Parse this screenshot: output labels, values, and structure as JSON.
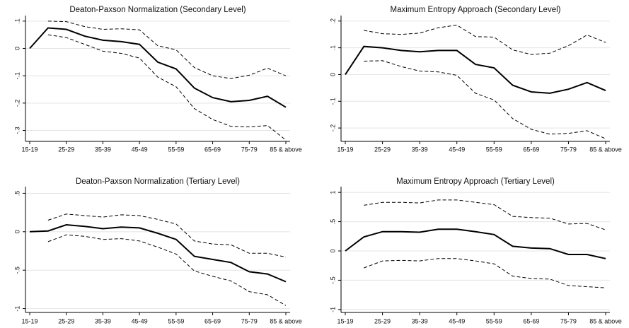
{
  "chart_data": [
    {
      "type": "line",
      "title": "Deaton-Paxson Normalization (Secondary Level)",
      "categories": [
        "15-19",
        null,
        "25-29",
        null,
        "35-39",
        null,
        "45-49",
        null,
        "55-59",
        null,
        "65-69",
        null,
        "75-79",
        null,
        "85 & above"
      ],
      "series": [
        {
          "color": "#000000",
          "style": "solid",
          "values": [
            0,
            0.075,
            0.07,
            0.045,
            0.03,
            0.025,
            0.015,
            -0.05,
            -0.075,
            -0.145,
            -0.18,
            -0.195,
            -0.19,
            -0.175,
            -0.215
          ]
        },
        {
          "color": "#000000",
          "style": "dashed",
          "values": [
            null,
            0.1,
            0.098,
            0.08,
            0.07,
            0.072,
            0.068,
            0.01,
            -0.005,
            -0.07,
            -0.1,
            -0.11,
            -0.098,
            -0.072,
            -0.1
          ]
        },
        {
          "color": "#000000",
          "style": "dashed",
          "values": [
            null,
            0.05,
            0.04,
            0.015,
            -0.01,
            -0.018,
            -0.035,
            -0.105,
            -0.14,
            -0.22,
            -0.26,
            -0.285,
            -0.287,
            -0.282,
            -0.335
          ]
        }
      ],
      "ylim": [
        -0.34,
        0.11
      ],
      "yticks": [
        {
          "value": 0.1,
          "label": ".1"
        },
        0,
        {
          "value": -0.1,
          "label": "-.1"
        },
        {
          "value": -0.2,
          "label": "-.2"
        },
        {
          "value": -0.3,
          "label": "-.3"
        }
      ],
      "grid": true
    },
    {
      "type": "line",
      "title": "Maximum Entropy Approach (Secondary Level)",
      "categories": [
        "15-19",
        null,
        "25-29",
        null,
        "35-39",
        null,
        "45-49",
        null,
        "55-59",
        null,
        "65-69",
        null,
        "75-79",
        null,
        "85 & above"
      ],
      "series": [
        {
          "color": "#000000",
          "style": "solid",
          "values": [
            0,
            0.105,
            0.1,
            0.09,
            0.085,
            0.09,
            0.09,
            0.038,
            0.025,
            -0.04,
            -0.065,
            -0.07,
            -0.055,
            -0.03,
            -0.06
          ]
        },
        {
          "color": "#000000",
          "style": "dashed",
          "values": [
            null,
            0.165,
            0.153,
            0.15,
            0.155,
            0.175,
            0.185,
            0.142,
            0.14,
            0.092,
            0.075,
            0.08,
            0.108,
            0.148,
            0.12
          ]
        },
        {
          "color": "#000000",
          "style": "dashed",
          "values": [
            null,
            0.05,
            0.052,
            0.03,
            0.013,
            0.01,
            -0.003,
            -0.07,
            -0.095,
            -0.165,
            -0.205,
            -0.223,
            -0.22,
            -0.21,
            -0.24
          ]
        }
      ],
      "ylim": [
        -0.25,
        0.21
      ],
      "yticks": [
        {
          "value": 0.2,
          "label": ".2"
        },
        {
          "value": 0.1,
          "label": ".1"
        },
        0,
        {
          "value": -0.1,
          "label": "-.1"
        },
        {
          "value": -0.2,
          "label": "-.2"
        }
      ],
      "grid": true
    },
    {
      "type": "line",
      "title": "Deaton-Paxson Normalization (Tertiary Level)",
      "categories": [
        "15-19",
        null,
        "25-29",
        null,
        "35-39",
        null,
        "45-49",
        null,
        "55-59",
        null,
        "65-69",
        null,
        "75-79",
        null,
        "85 & above"
      ],
      "series": [
        {
          "color": "#000000",
          "style": "solid",
          "values": [
            0,
            0.01,
            0.09,
            0.07,
            0.04,
            0.06,
            0.05,
            -0.02,
            -0.1,
            -0.32,
            -0.36,
            -0.4,
            -0.52,
            -0.55,
            -0.65
          ]
        },
        {
          "color": "#000000",
          "style": "dashed",
          "values": [
            null,
            0.15,
            0.23,
            0.21,
            0.19,
            0.22,
            0.21,
            0.16,
            0.1,
            -0.12,
            -0.16,
            -0.17,
            -0.28,
            -0.28,
            -0.33
          ]
        },
        {
          "color": "#000000",
          "style": "dashed",
          "values": [
            null,
            -0.13,
            -0.04,
            -0.06,
            -0.1,
            -0.09,
            -0.12,
            -0.2,
            -0.29,
            -0.51,
            -0.58,
            -0.64,
            -0.78,
            -0.82,
            -0.96
          ]
        }
      ],
      "ylim": [
        -1.05,
        0.55
      ],
      "yticks": [
        {
          "value": 0.5,
          "label": ".5"
        },
        0,
        {
          "value": -0.5,
          "label": "-.5"
        },
        -1
      ],
      "grid": true
    },
    {
      "type": "line",
      "title": "Maximum Entropy Approach (Tertiary Level)",
      "categories": [
        "15-19",
        null,
        "25-29",
        null,
        "35-39",
        null,
        "45-49",
        null,
        "55-59",
        null,
        "65-69",
        null,
        "75-79",
        null,
        "85 & above"
      ],
      "series": [
        {
          "color": "#000000",
          "style": "solid",
          "values": [
            0,
            0.24,
            0.33,
            0.33,
            0.32,
            0.37,
            0.37,
            0.33,
            0.28,
            0.08,
            0.05,
            0.04,
            -0.06,
            -0.06,
            -0.13
          ]
        },
        {
          "color": "#000000",
          "style": "dashed",
          "values": [
            null,
            0.78,
            0.83,
            0.83,
            0.82,
            0.87,
            0.87,
            0.83,
            0.79,
            0.59,
            0.57,
            0.56,
            0.46,
            0.47,
            0.36
          ]
        },
        {
          "color": "#000000",
          "style": "dashed",
          "values": [
            null,
            -0.29,
            -0.17,
            -0.16,
            -0.17,
            -0.13,
            -0.13,
            -0.17,
            -0.22,
            -0.43,
            -0.47,
            -0.48,
            -0.59,
            -0.61,
            -0.63
          ]
        }
      ],
      "ylim": [
        -1.05,
        1.05
      ],
      "yticks": [
        1,
        {
          "value": 0.5,
          "label": ".5"
        },
        0,
        {
          "value": -0.5,
          "label": "-.5"
        },
        -1
      ],
      "grid": true
    }
  ]
}
